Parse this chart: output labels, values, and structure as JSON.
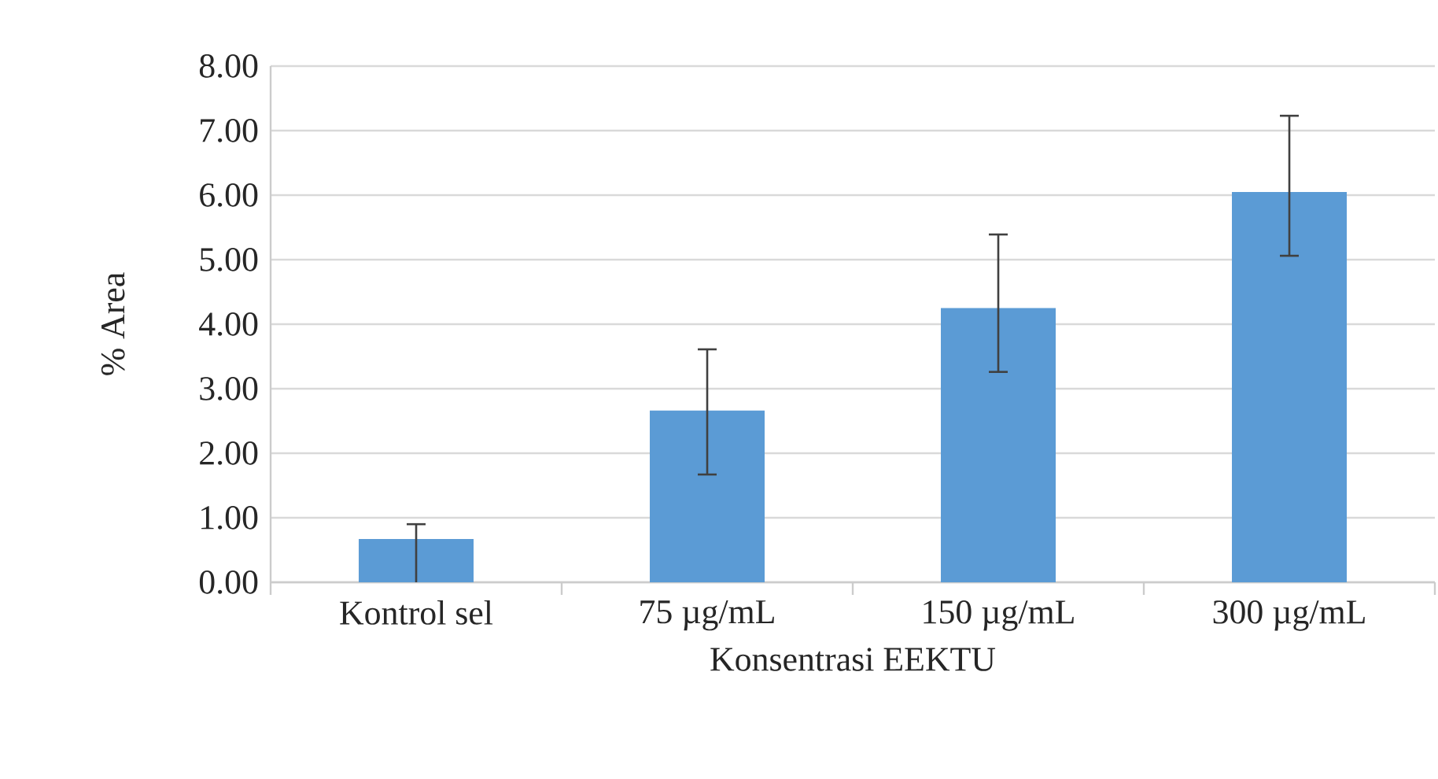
{
  "chart_data": {
    "type": "bar",
    "xlabel": "Konsentrasi EEKTU",
    "ylabel": "% Area",
    "categories": [
      "Kontrol sel",
      "75 µg/mL",
      "150 µg/mL",
      "300 µg/mL"
    ],
    "values": [
      0.67,
      2.66,
      4.25,
      6.05
    ],
    "errors": [
      [
        0,
        0.9
      ],
      [
        1.67,
        3.61
      ],
      [
        3.26,
        5.39
      ],
      [
        5.06,
        7.23
      ]
    ],
    "color": "#5b9bd5",
    "ylim": [
      0,
      8
    ],
    "yticks": [
      {
        "value": 0,
        "label": "0.00"
      },
      {
        "value": 1,
        "label": "1.00"
      },
      {
        "value": 2,
        "label": "2.00"
      },
      {
        "value": 3,
        "label": "3.00"
      },
      {
        "value": 4,
        "label": "4.00"
      },
      {
        "value": 5,
        "label": "5.00"
      },
      {
        "value": 6,
        "label": "6.00"
      },
      {
        "value": 7,
        "label": "7.00"
      },
      {
        "value": 8,
        "label": "8.00"
      }
    ],
    "grid": "y"
  }
}
